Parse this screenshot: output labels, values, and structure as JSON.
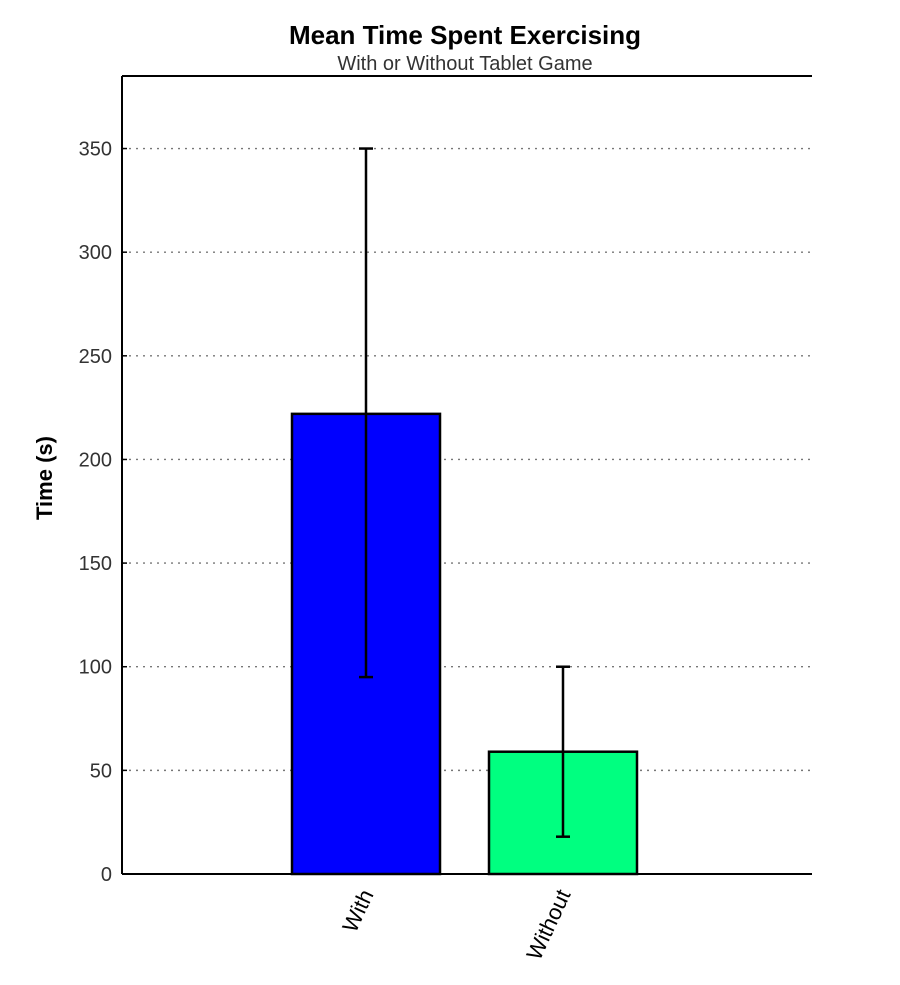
{
  "chart_data": {
    "type": "bar",
    "title": "Mean Time Spent Exercising",
    "subtitle": "With or Without Tablet Game",
    "xlabel": "",
    "ylabel": "Time (s)",
    "categories": [
      "With",
      "Without"
    ],
    "values": [
      222,
      59
    ],
    "error_low": [
      95,
      18
    ],
    "error_high": [
      350,
      100
    ],
    "bar_colors": [
      "#0000ff",
      "#00ff80"
    ],
    "ylim": [
      0,
      385
    ],
    "yticks": [
      "0",
      "50",
      "100",
      "150",
      "200",
      "250",
      "300",
      "350"
    ],
    "grid": true,
    "grid_style": "dotted-horizontal",
    "legend": "none"
  }
}
